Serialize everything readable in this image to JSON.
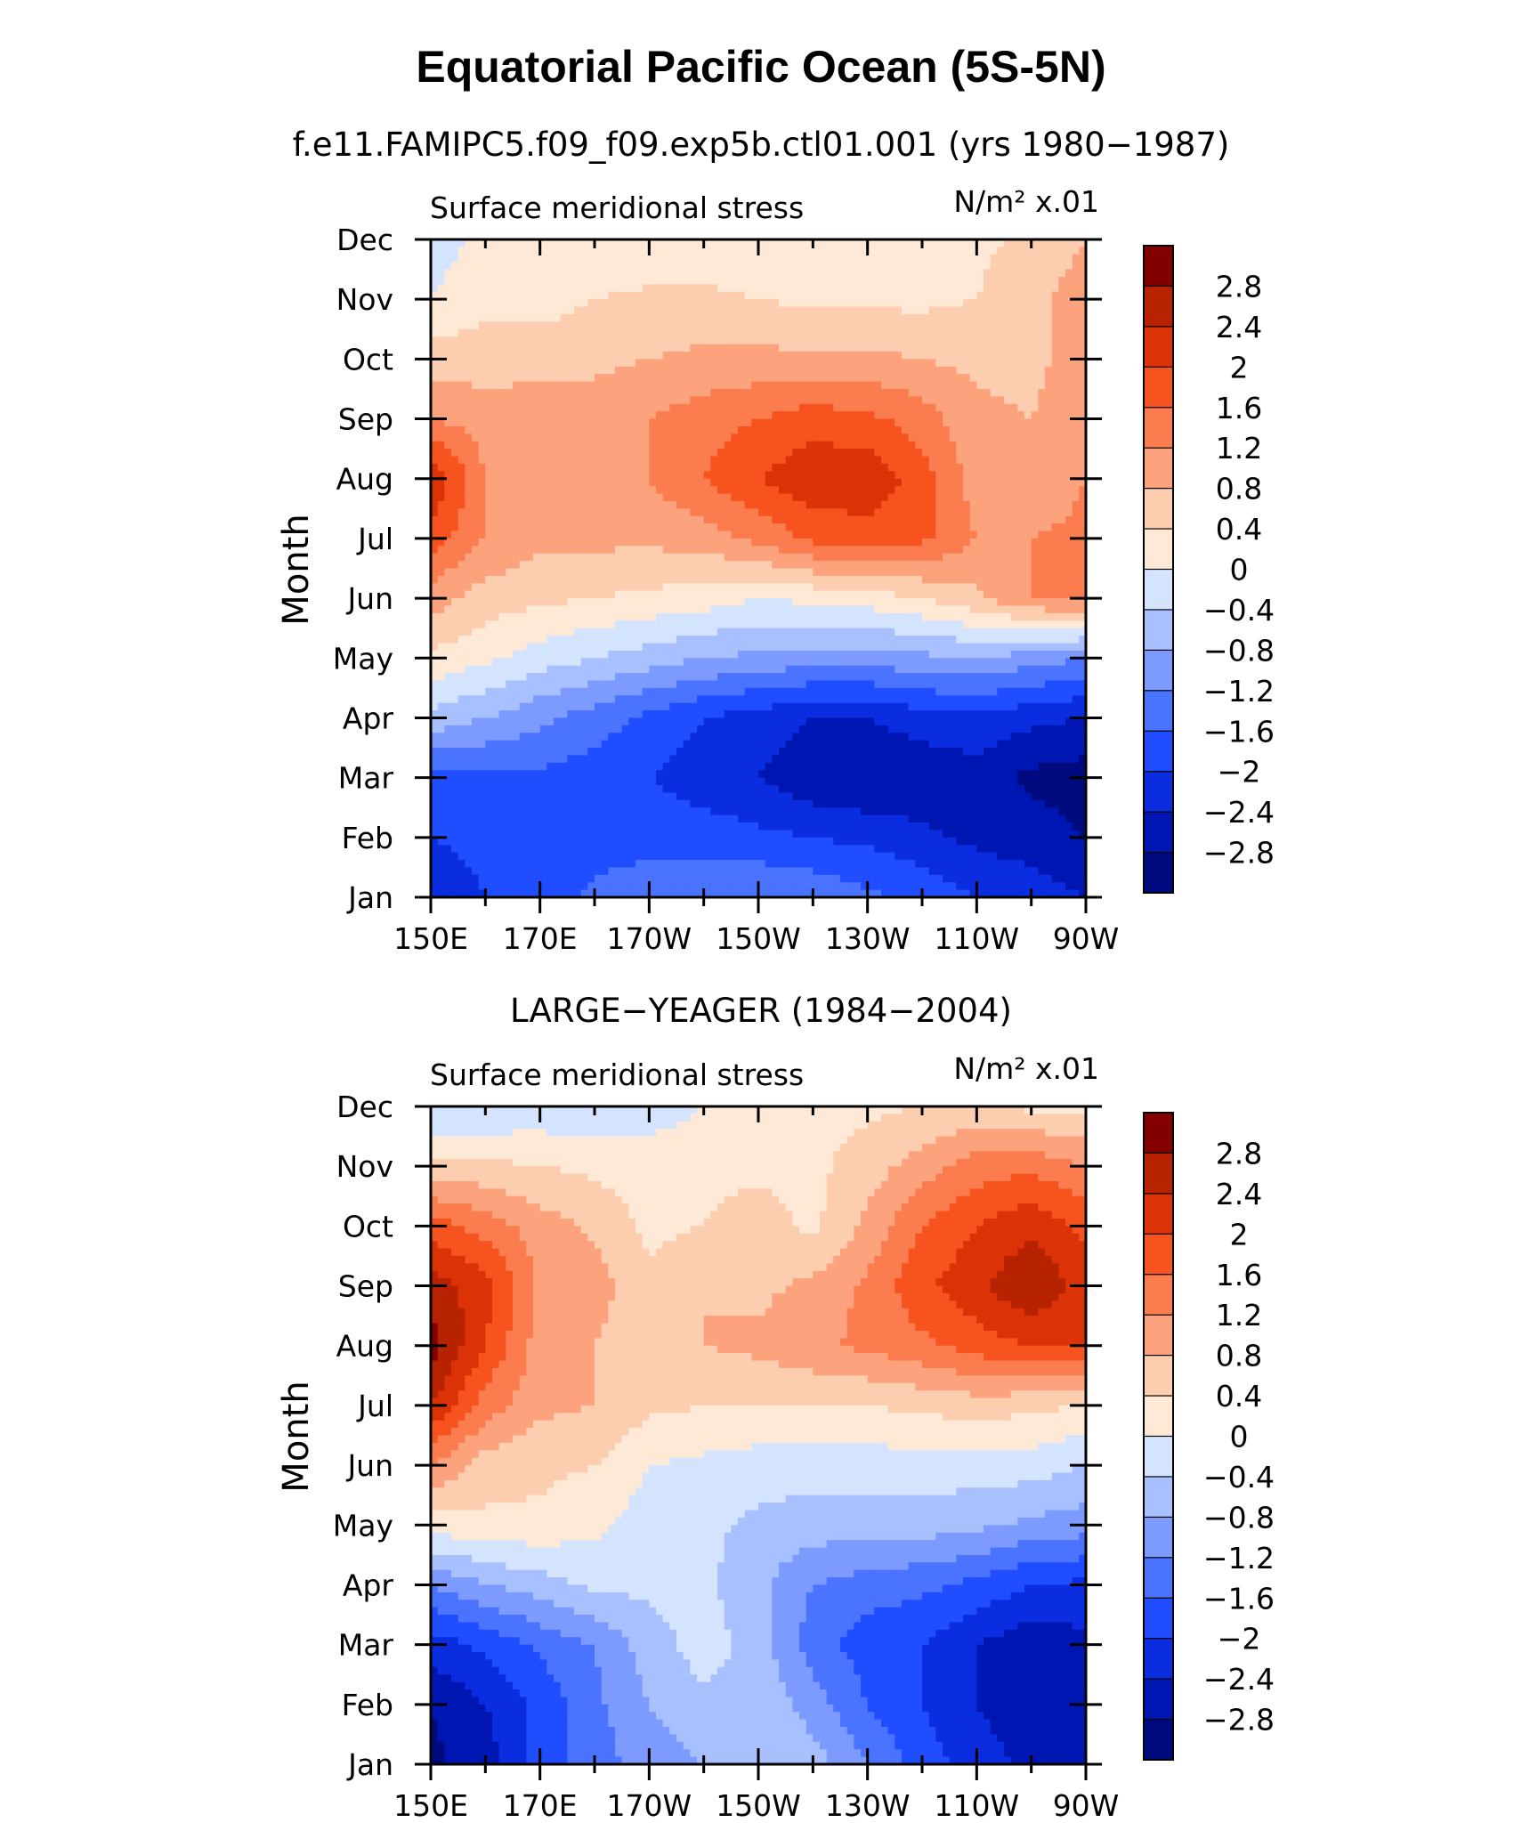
{
  "title": "Equatorial Pacific Ocean (5S-5N)",
  "colors": {
    "levels": [
      -2.8,
      -2.4,
      -2,
      -1.6,
      -1.2,
      -0.8,
      -0.4,
      0,
      0.4,
      0.8,
      1.2,
      1.6,
      2,
      2.4,
      2.8
    ],
    "fills": [
      "#000a7f",
      "#0016b3",
      "#0a2de0",
      "#1f4dff",
      "#4a73ff",
      "#7d9bff",
      "#a9c0ff",
      "#d4e4ff",
      "#fde9d6",
      "#fdcdb0",
      "#fca37d",
      "#fb7c4f",
      "#f6531f",
      "#dc3208",
      "#b72200",
      "#820000"
    ]
  },
  "chart_data": [
    {
      "type": "heatmap",
      "title": "f.e11.FAMIPC5.f09_f09.exp5b.ctl01.001 (yrs 1980−1987)",
      "left_label": "Surface meridional stress",
      "units_label": "N/m² x.01",
      "ylabel": "Month",
      "xlabel": "",
      "x_ticks": [
        "150E",
        "170E",
        "170W",
        "150W",
        "130W",
        "110W",
        "90W"
      ],
      "y_ticks": [
        "Jan",
        "Feb",
        "Mar",
        "Apr",
        "May",
        "Jun",
        "Jul",
        "Aug",
        "Sep",
        "Oct",
        "Nov",
        "Dec"
      ],
      "x_values": [
        150,
        160,
        170,
        180,
        190,
        200,
        210,
        220,
        230,
        240,
        250,
        260,
        270
      ],
      "colorbar_labels": [
        "2.8",
        "2.4",
        "2",
        "1.6",
        "1.2",
        "0.8",
        "0.4",
        "0",
        "−0.4",
        "−0.8",
        "−1.2",
        "−1.6",
        "−2",
        "−2.4",
        "−2.8"
      ],
      "z": [
        [
          -2.2,
          -2.0,
          -1.8,
          -1.5,
          -1.3,
          -1.2,
          -1.2,
          -1.3,
          -1.5,
          -1.7,
          -2.0,
          -2.2,
          -2.4
        ],
        [
          -2.0,
          -1.9,
          -1.8,
          -1.8,
          -1.8,
          -1.8,
          -1.9,
          -2.0,
          -2.1,
          -2.3,
          -2.5,
          -2.6,
          -2.8
        ],
        [
          -1.8,
          -1.7,
          -1.7,
          -1.8,
          -2.0,
          -2.2,
          -2.4,
          -2.7,
          -2.8,
          -2.7,
          -2.6,
          -2.9,
          -3.0
        ],
        [
          -0.5,
          -0.8,
          -1.1,
          -1.4,
          -1.7,
          -2.0,
          -2.2,
          -2.4,
          -2.4,
          -2.2,
          -2.1,
          -2.3,
          -2.4
        ],
        [
          0.3,
          0.1,
          -0.2,
          -0.4,
          -0.6,
          -0.8,
          -0.9,
          -1.0,
          -1.0,
          -0.9,
          -0.8,
          -1.0,
          -1.2
        ],
        [
          1.0,
          0.6,
          0.5,
          0.4,
          0.3,
          0.2,
          0.0,
          0.1,
          0.2,
          0.4,
          0.7,
          1.2,
          1.3
        ],
        [
          1.8,
          1.2,
          0.9,
          0.9,
          0.9,
          1.0,
          1.3,
          1.7,
          1.8,
          1.7,
          1.2,
          1.2,
          1.3
        ],
        [
          2.4,
          1.2,
          1.0,
          0.9,
          1.2,
          1.6,
          2.0,
          2.3,
          2.3,
          1.8,
          1.0,
          0.9,
          1.2
        ],
        [
          1.2,
          1.0,
          1.0,
          1.0,
          1.2,
          1.4,
          1.6,
          1.8,
          1.7,
          1.4,
          0.9,
          0.8,
          1.0
        ],
        [
          0.6,
          0.6,
          0.7,
          0.7,
          0.8,
          0.9,
          0.9,
          0.9,
          0.9,
          0.8,
          0.7,
          0.7,
          1.0
        ],
        [
          0.0,
          0.3,
          0.2,
          0.4,
          0.5,
          0.5,
          0.4,
          0.3,
          0.3,
          0.3,
          0.4,
          0.7,
          1.0
        ],
        [
          -0.2,
          0.1,
          0.1,
          0.1,
          0.0,
          0.1,
          0.1,
          0.1,
          0.1,
          0.2,
          0.3,
          0.5,
          0.8
        ]
      ]
    },
    {
      "type": "heatmap",
      "title": "LARGE−YEAGER (1984−2004)",
      "left_label": "Surface meridional stress",
      "units_label": "N/m² x.01",
      "ylabel": "Month",
      "xlabel": "",
      "x_ticks": [
        "150E",
        "170E",
        "170W",
        "150W",
        "130W",
        "110W",
        "90W"
      ],
      "y_ticks": [
        "Jan",
        "Feb",
        "Mar",
        "Apr",
        "May",
        "Jun",
        "Jul",
        "Aug",
        "Sep",
        "Oct",
        "Nov",
        "Dec"
      ],
      "x_values": [
        150,
        160,
        170,
        180,
        190,
        200,
        210,
        220,
        230,
        240,
        250,
        260,
        270
      ],
      "colorbar_labels": [
        "2.8",
        "2.4",
        "2",
        "1.6",
        "1.2",
        "0.8",
        "0.4",
        "0",
        "−0.4",
        "−0.8",
        "−1.2",
        "−1.6",
        "−2",
        "−2.4",
        "−2.8"
      ],
      "z": [
        [
          -2.9,
          -2.6,
          -1.8,
          -1.4,
          -1.0,
          -0.8,
          -0.4,
          -0.6,
          -1.2,
          -1.8,
          -2.2,
          -2.5,
          -2.6
        ],
        [
          -2.8,
          -2.4,
          -1.9,
          -1.3,
          -0.8,
          -0.5,
          -0.5,
          -1.0,
          -1.6,
          -2.0,
          -2.4,
          -2.7,
          -2.6
        ],
        [
          -2.2,
          -1.9,
          -1.5,
          -1.2,
          -0.6,
          -0.2,
          -0.6,
          -1.4,
          -1.8,
          -2.0,
          -2.4,
          -2.7,
          -2.5
        ],
        [
          -1.2,
          -0.8,
          -0.6,
          -0.3,
          -0.3,
          -0.3,
          -0.7,
          -1.2,
          -1.4,
          -1.5,
          -1.7,
          -2.0,
          -2.1
        ],
        [
          0.2,
          0.3,
          0.3,
          0.1,
          -0.2,
          -0.3,
          -0.5,
          -0.6,
          -0.6,
          -0.6,
          -0.7,
          -0.9,
          -1.0
        ],
        [
          1.2,
          0.6,
          0.5,
          0.4,
          0.0,
          -0.1,
          -0.2,
          -0.2,
          -0.2,
          -0.2,
          -0.2,
          -0.2,
          -0.4
        ],
        [
          2.4,
          1.4,
          0.9,
          0.8,
          0.5,
          0.4,
          0.4,
          0.4,
          0.4,
          0.5,
          0.6,
          0.5,
          0.4
        ],
        [
          3.0,
          2.0,
          1.0,
          0.8,
          0.4,
          0.8,
          0.9,
          1.1,
          1.3,
          1.5,
          1.8,
          2.0,
          2.0
        ],
        [
          2.6,
          2.2,
          1.1,
          1.0,
          0.5,
          0.8,
          0.7,
          0.9,
          1.3,
          1.9,
          2.3,
          2.8,
          2.2
        ],
        [
          1.8,
          1.4,
          1.0,
          0.7,
          0.3,
          0.4,
          0.6,
          0.3,
          0.9,
          1.6,
          2.0,
          2.3,
          1.9
        ],
        [
          0.5,
          0.5,
          0.4,
          0.3,
          0.2,
          0.3,
          0.3,
          0.3,
          0.6,
          1.0,
          1.4,
          1.5,
          1.2
        ],
        [
          -0.4,
          -0.4,
          -0.3,
          -0.3,
          -0.2,
          0.0,
          0.2,
          0.3,
          0.3,
          0.4,
          0.5,
          0.3,
          0.3
        ]
      ]
    }
  ]
}
